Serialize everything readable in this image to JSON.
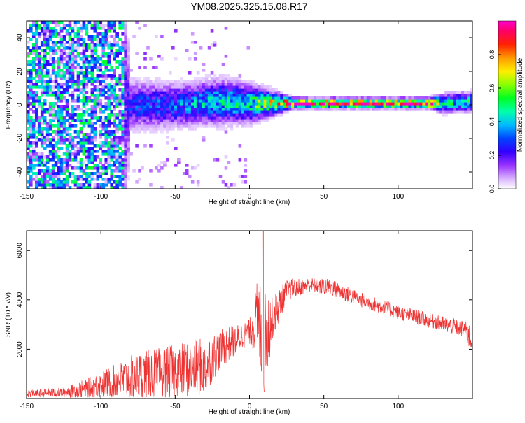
{
  "figure_title": "YM08.2025.325.15.08.R17",
  "colors": {
    "snr_line": "#ee3333",
    "signal_line": "#ff2020",
    "colormap": [
      "#e8d0ff",
      "#b060ff",
      "#7a00ff",
      "#0000ff",
      "#00c0ff",
      "#00ff80",
      "#80ff00",
      "#ffff00",
      "#ff8000",
      "#ff0000",
      "#ff0080"
    ]
  },
  "chart_data": [
    {
      "type": "heatmap",
      "xlabel": "Height of straight line (km)",
      "ylabel": "Frequency (Hz)",
      "xlim": [
        -150,
        150
      ],
      "ylim": [
        -50,
        50
      ],
      "xticks": [
        -150,
        -100,
        -50,
        0,
        50,
        100
      ],
      "yticks": [
        -40,
        -20,
        0,
        20,
        40
      ],
      "colorbar": {
        "label": "Normalized spectral amplitude",
        "range": [
          0,
          1
        ],
        "ticks": [
          "0.0",
          "0.2",
          "0.4",
          "0.6",
          "0.8"
        ],
        "tick_values": [
          0,
          0.2,
          0.4,
          0.6,
          0.8
        ]
      },
      "profile": [
        {
          "x": -150,
          "center": 0,
          "width": 50,
          "amp": 0.15
        },
        {
          "x": -85,
          "center": 0,
          "width": 50,
          "amp": 0.15
        },
        {
          "x": -80,
          "center": 0,
          "width": 8,
          "amp": 0.25
        },
        {
          "x": -50,
          "center": 0,
          "width": 7,
          "amp": 0.3
        },
        {
          "x": -20,
          "center": 2,
          "width": 7,
          "amp": 0.4
        },
        {
          "x": 0,
          "center": 1,
          "width": 6,
          "amp": 0.45
        },
        {
          "x": 20,
          "center": 1,
          "width": 3,
          "amp": 0.7
        },
        {
          "x": 30,
          "center": 1,
          "width": 1.5,
          "amp": 0.95
        },
        {
          "x": 120,
          "center": 1,
          "width": 1.5,
          "amp": 0.95
        },
        {
          "x": 130,
          "center": 1,
          "width": 3,
          "amp": 0.4
        },
        {
          "x": 150,
          "center": 2,
          "width": 3,
          "amp": 0.45
        }
      ]
    },
    {
      "type": "line",
      "xlabel": "Height of straight line (km)",
      "ylabel": "SNR (10 * v/v)",
      "xlim": [
        -150,
        150
      ],
      "ylim": [
        0,
        6800
      ],
      "xticks": [
        -150,
        -100,
        -50,
        0,
        50,
        100
      ],
      "yticks": [
        2000,
        4000,
        6000
      ],
      "envelope": [
        {
          "x": -150,
          "mean": 200,
          "spread": 150
        },
        {
          "x": -125,
          "mean": 250,
          "spread": 200
        },
        {
          "x": -110,
          "mean": 400,
          "spread": 400
        },
        {
          "x": -90,
          "mean": 700,
          "spread": 700
        },
        {
          "x": -75,
          "mean": 900,
          "spread": 1000
        },
        {
          "x": -50,
          "mean": 1100,
          "spread": 1100
        },
        {
          "x": -30,
          "mean": 1300,
          "spread": 1200
        },
        {
          "x": -20,
          "mean": 2000,
          "spread": 800
        },
        {
          "x": 0,
          "mean": 2700,
          "spread": 500
        },
        {
          "x": 5,
          "mean": 3200,
          "spread": 1500
        },
        {
          "x": 10,
          "mean": 2500,
          "spread": 2500
        },
        {
          "x": 15,
          "mean": 3200,
          "spread": 900
        },
        {
          "x": 25,
          "mean": 4400,
          "spread": 450
        },
        {
          "x": 40,
          "mean": 4600,
          "spread": 300
        },
        {
          "x": 55,
          "mean": 4500,
          "spread": 350
        },
        {
          "x": 75,
          "mean": 4000,
          "spread": 300
        },
        {
          "x": 100,
          "mean": 3500,
          "spread": 300
        },
        {
          "x": 125,
          "mean": 3100,
          "spread": 300
        },
        {
          "x": 145,
          "mean": 2800,
          "spread": 350
        },
        {
          "x": 150,
          "mean": 2300,
          "spread": 700
        }
      ]
    }
  ]
}
